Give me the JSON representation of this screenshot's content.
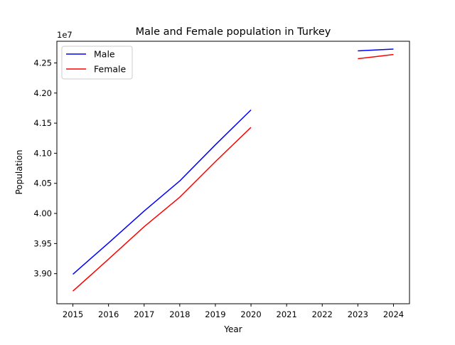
{
  "chart_data": {
    "type": "line",
    "title": "Male and Female population in Turkey",
    "xlabel": "Year",
    "ylabel": "Population",
    "offset_label": "1e7",
    "x_ticks": [
      "2015",
      "2016",
      "2017",
      "2018",
      "2019",
      "2020",
      "2021",
      "2022",
      "2023",
      "2024"
    ],
    "y_ticks": [
      "3.90",
      "3.95",
      "4.00",
      "4.05",
      "4.10",
      "4.15",
      "4.20",
      "4.25"
    ],
    "xlim": [
      2014.55,
      2024.45
    ],
    "ylim": [
      38.5,
      42.86
    ],
    "grid": false,
    "legend_position": "upper-left",
    "series": [
      {
        "name": "Male",
        "color": "#0000ff",
        "points": [
          [
            2015,
            38.99
          ],
          [
            2016,
            39.51
          ],
          [
            2017,
            40.04
          ],
          [
            2018,
            40.54
          ],
          [
            2019,
            41.14
          ],
          [
            2020,
            41.72
          ],
          [
            2021,
            null
          ],
          [
            2022,
            null
          ],
          [
            2023,
            42.7
          ],
          [
            2024,
            42.73
          ]
        ]
      },
      {
        "name": "Female",
        "color": "#ff0000",
        "points": [
          [
            2015,
            38.71
          ],
          [
            2016,
            39.24
          ],
          [
            2017,
            39.78
          ],
          [
            2018,
            40.27
          ],
          [
            2019,
            40.86
          ],
          [
            2020,
            41.43
          ],
          [
            2021,
            null
          ],
          [
            2022,
            null
          ],
          [
            2023,
            42.57
          ],
          [
            2024,
            42.64
          ]
        ]
      }
    ]
  }
}
